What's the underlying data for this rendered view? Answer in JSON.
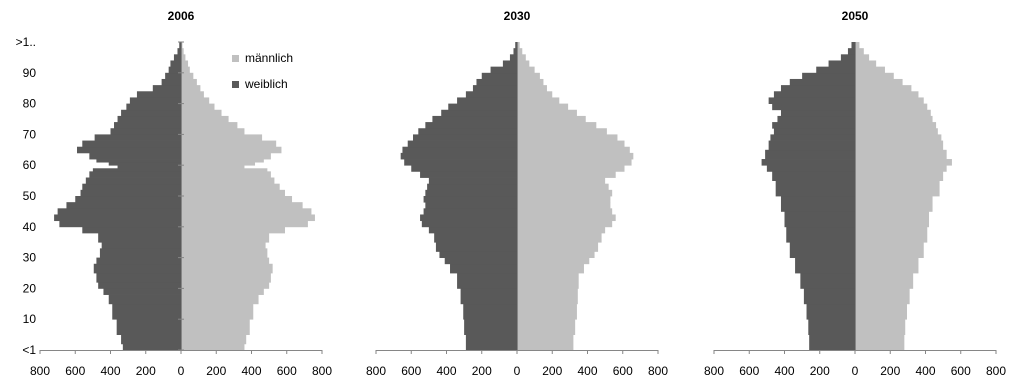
{
  "chart_data": [
    {
      "type": "bar",
      "title": "2006",
      "orientation": "horizontal-population-pyramid",
      "xlim": [
        -800,
        800
      ],
      "x_ticks": [
        "800",
        "600",
        "400",
        "200",
        "0",
        "200",
        "400",
        "600",
        "800"
      ],
      "y_ticks": [
        "<1",
        "10",
        "20",
        "30",
        "40",
        "50",
        "60",
        "70",
        "80",
        "90",
        ">1.."
      ],
      "legend": {
        "placement": "top-right",
        "entries": [
          "männlich",
          "weiblich"
        ]
      },
      "colors": {
        "männlich": "#c0c0c0",
        "weiblich": "#595959"
      },
      "ages": [
        0,
        2,
        5,
        10,
        15,
        18,
        20,
        22,
        25,
        28,
        30,
        33,
        35,
        38,
        40,
        42,
        44,
        46,
        48,
        50,
        52,
        54,
        56,
        58,
        59,
        60,
        61,
        62,
        64,
        66,
        68,
        70,
        72,
        74,
        76,
        78,
        80,
        82,
        84,
        86,
        88,
        90,
        92,
        94,
        96,
        98,
        100
      ],
      "series": [
        {
          "name": "weiblich",
          "values": [
            330,
            340,
            365,
            390,
            410,
            440,
            470,
            480,
            495,
            480,
            460,
            450,
            470,
            560,
            690,
            720,
            700,
            650,
            600,
            570,
            560,
            540,
            520,
            500,
            360,
            410,
            480,
            520,
            590,
            560,
            490,
            400,
            380,
            360,
            340,
            310,
            290,
            250,
            160,
            110,
            90,
            70,
            60,
            40,
            20,
            10,
            5
          ]
        },
        {
          "name": "männlich",
          "values": [
            360,
            370,
            390,
            410,
            440,
            470,
            500,
            510,
            520,
            500,
            490,
            480,
            500,
            590,
            720,
            760,
            740,
            690,
            630,
            590,
            560,
            530,
            510,
            490,
            360,
            420,
            470,
            510,
            570,
            540,
            460,
            360,
            320,
            270,
            230,
            190,
            160,
            130,
            110,
            90,
            70,
            50,
            40,
            25,
            15,
            8,
            4
          ]
        }
      ]
    },
    {
      "type": "bar",
      "title": "2030",
      "orientation": "horizontal-population-pyramid",
      "xlim": [
        -800,
        800
      ],
      "x_ticks": [
        "800",
        "600",
        "400",
        "200",
        "0",
        "200",
        "400",
        "600",
        "800"
      ],
      "y_ticks": [
        "<1",
        "10",
        "20",
        "30",
        "40",
        "50",
        "60",
        "70",
        "80",
        "90",
        ">1.."
      ],
      "colors": {
        "männlich": "#c0c0c0",
        "weiblich": "#595959"
      },
      "ages": [
        0,
        5,
        10,
        15,
        20,
        25,
        28,
        30,
        32,
        35,
        38,
        40,
        42,
        44,
        46,
        48,
        50,
        52,
        54,
        56,
        58,
        60,
        62,
        64,
        66,
        68,
        70,
        72,
        74,
        76,
        78,
        80,
        82,
        84,
        86,
        88,
        90,
        92,
        94,
        96,
        98,
        100
      ],
      "series": [
        {
          "name": "weiblich",
          "values": [
            290,
            300,
            305,
            320,
            340,
            380,
            410,
            440,
            460,
            470,
            500,
            540,
            550,
            530,
            520,
            530,
            520,
            510,
            500,
            550,
            600,
            640,
            660,
            650,
            620,
            590,
            560,
            520,
            480,
            430,
            390,
            340,
            290,
            250,
            230,
            200,
            150,
            80,
            40,
            20,
            10,
            5
          ]
        },
        {
          "name": "männlich",
          "values": [
            320,
            330,
            340,
            345,
            350,
            380,
            410,
            440,
            460,
            480,
            500,
            540,
            560,
            540,
            530,
            530,
            540,
            520,
            500,
            560,
            610,
            650,
            660,
            640,
            610,
            570,
            510,
            450,
            390,
            340,
            290,
            240,
            200,
            170,
            150,
            130,
            100,
            70,
            50,
            30,
            15,
            8
          ]
        }
      ]
    },
    {
      "type": "bar",
      "title": "2050",
      "orientation": "horizontal-population-pyramid",
      "xlim": [
        -800,
        800
      ],
      "x_ticks": [
        "800",
        "600",
        "400",
        "200",
        "0",
        "200",
        "400",
        "600",
        "800"
      ],
      "y_ticks": [
        "<1",
        "10",
        "20",
        "30",
        "40",
        "50",
        "60",
        "70",
        "80",
        "90",
        ">1.."
      ],
      "colors": {
        "männlich": "#c0c0c0",
        "weiblich": "#595959"
      },
      "ages": [
        0,
        5,
        10,
        15,
        20,
        25,
        30,
        35,
        40,
        45,
        50,
        55,
        58,
        60,
        62,
        65,
        68,
        70,
        72,
        74,
        76,
        78,
        80,
        82,
        84,
        86,
        88,
        90,
        92,
        94,
        96,
        98,
        100
      ],
      "series": [
        {
          "name": "weiblich",
          "values": [
            260,
            265,
            275,
            290,
            310,
            340,
            370,
            390,
            400,
            420,
            450,
            470,
            500,
            530,
            510,
            490,
            480,
            460,
            470,
            440,
            420,
            470,
            490,
            460,
            420,
            370,
            300,
            220,
            150,
            80,
            40,
            20,
            10
          ]
        },
        {
          "name": "männlich",
          "values": [
            280,
            285,
            295,
            310,
            330,
            360,
            390,
            410,
            420,
            440,
            480,
            500,
            520,
            550,
            520,
            500,
            490,
            470,
            460,
            440,
            430,
            410,
            390,
            360,
            320,
            270,
            220,
            170,
            120,
            80,
            50,
            25,
            12
          ]
        }
      ]
    }
  ]
}
